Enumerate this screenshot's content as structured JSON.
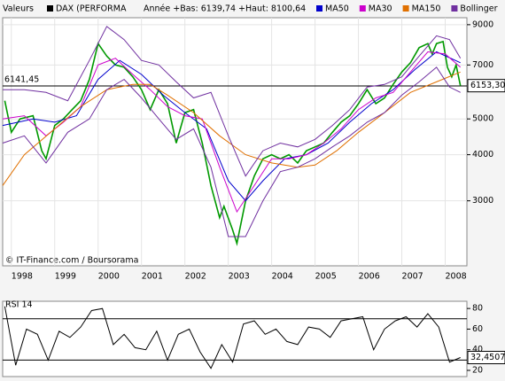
{
  "chart_data": [
    {
      "type": "line",
      "label": "Valeurs",
      "instrument": "DAX (PERFORMA",
      "range_text": "Année +Bas: 6139,74 +Haut: 8100,64",
      "source": "© IT-Finance.com / Boursorama",
      "log_scale": true,
      "grid": true,
      "xlim": [
        1997.8,
        2008.5
      ],
      "xticks": [
        1998,
        1999,
        2000,
        2001,
        2002,
        2003,
        2004,
        2005,
        2006,
        2007,
        2008
      ],
      "ylim": [
        2000,
        9400
      ],
      "yticks": [
        3000,
        4000,
        5000,
        7000,
        9000
      ],
      "reference_line": {
        "value": 6141.45,
        "label": "6141,45"
      },
      "last_value": {
        "value": 6153.3,
        "label": "6153,30"
      },
      "series": [
        {
          "color": "#009900",
          "x": [
            1997.85,
            1998.0,
            1998.2,
            1998.5,
            1998.7,
            1998.8,
            1999.0,
            1999.2,
            1999.4,
            1999.6,
            1999.8,
            2000.0,
            2000.2,
            2000.4,
            2000.6,
            2000.8,
            2001.0,
            2001.2,
            2001.4,
            2001.6,
            2001.8,
            2002.0,
            2002.2,
            2002.4,
            2002.6,
            2002.8,
            2002.9,
            2003.1,
            2003.2,
            2003.4,
            2003.6,
            2003.8,
            2004.0,
            2004.2,
            2004.4,
            2004.6,
            2004.8,
            2005.0,
            2005.2,
            2005.4,
            2005.6,
            2005.8,
            2006.0,
            2006.2,
            2006.4,
            2006.6,
            2006.8,
            2007.0,
            2007.2,
            2007.4,
            2007.6,
            2007.7,
            2007.8,
            2007.95,
            2008.05,
            2008.15,
            2008.25,
            2008.35
          ],
          "values": [
            5600,
            4600,
            5000,
            5100,
            4100,
            3900,
            4800,
            5000,
            5300,
            5600,
            6400,
            8000,
            7400,
            7000,
            6900,
            6500,
            6000,
            5300,
            6000,
            5500,
            4300,
            5200,
            5300,
            4300,
            3300,
            2700,
            2900,
            2500,
            2300,
            3000,
            3500,
            3900,
            4000,
            3900,
            4000,
            3800,
            4100,
            4200,
            4300,
            4600,
            4900,
            5100,
            5500,
            6000,
            5500,
            5700,
            6200,
            6700,
            7100,
            7800,
            8000,
            7500,
            8000,
            8100,
            6900,
            6500,
            7000,
            6150
          ]
        },
        {
          "name": "MA50",
          "color": "#0000cc",
          "x": [
            1997.8,
            1998.5,
            1999.0,
            1999.5,
            2000.0,
            2000.5,
            2001.0,
            2001.5,
            2002.0,
            2002.5,
            2003.0,
            2003.4,
            2003.8,
            2004.3,
            2004.8,
            2005.3,
            2005.8,
            2006.3,
            2006.8,
            2007.3,
            2007.8,
            2008.35
          ],
          "values": [
            4800,
            5000,
            4900,
            5100,
            6400,
            7200,
            6600,
            5800,
            5200,
            4700,
            3400,
            3000,
            3400,
            3900,
            4000,
            4300,
            4900,
            5500,
            6000,
            6800,
            7600,
            7100
          ]
        },
        {
          "name": "MA30",
          "color": "#cc00cc",
          "x": [
            1997.8,
            1998.3,
            1998.8,
            1999.2,
            1999.6,
            2000.0,
            2000.4,
            2000.8,
            2001.2,
            2001.6,
            2002.0,
            2002.4,
            2002.8,
            2003.2,
            2003.6,
            2004.0,
            2004.4,
            2004.8,
            2005.2,
            2005.6,
            2006.0,
            2006.4,
            2006.8,
            2007.2,
            2007.6,
            2008.0,
            2008.35
          ],
          "values": [
            5000,
            5100,
            4500,
            4900,
            5400,
            7000,
            7300,
            6600,
            6000,
            5400,
            5100,
            5000,
            3700,
            2800,
            3300,
            3900,
            3900,
            4000,
            4300,
            4700,
            5300,
            5700,
            5900,
            6700,
            7600,
            7500,
            6900
          ]
        },
        {
          "name": "MA150",
          "color": "#e07000",
          "x": [
            1997.8,
            1998.3,
            1999.0,
            1999.6,
            2000.2,
            2000.8,
            2001.2,
            2001.6,
            2002.2,
            2002.8,
            2003.4,
            2004.0,
            2004.6,
            2005.0,
            2005.5,
            2006.0,
            2006.6,
            2007.2,
            2007.8,
            2008.35
          ],
          "values": [
            3300,
            4000,
            4700,
            5400,
            6000,
            6200,
            6200,
            5800,
            5200,
            4500,
            4000,
            3800,
            3700,
            3750,
            4100,
            4600,
            5200,
            5900,
            6300,
            6700
          ]
        },
        {
          "name": "Bollinger",
          "color": "#7030a0",
          "x": [
            1997.8,
            1998.3,
            1998.8,
            1999.3,
            1999.8,
            2000.2,
            2000.6,
            2001.0,
            2001.4,
            2001.8,
            2002.2,
            2002.6,
            2003.0,
            2003.4,
            2003.8,
            2004.2,
            2004.6,
            2005.0,
            2005.4,
            2005.8,
            2006.2,
            2006.6,
            2007.0,
            2007.4,
            2007.8,
            2008.1,
            2008.35
          ],
          "upper": [
            6000,
            6000,
            5900,
            5600,
            7200,
            8900,
            8200,
            7200,
            7000,
            6300,
            5700,
            5900,
            4500,
            3500,
            4100,
            4300,
            4200,
            4400,
            4800,
            5300,
            6100,
            6200,
            6500,
            7400,
            8400,
            8200,
            7300
          ],
          "lower": [
            4300,
            4500,
            3800,
            4600,
            5000,
            6000,
            6400,
            5700,
            5000,
            4400,
            4700,
            3700,
            2400,
            2400,
            3000,
            3600,
            3700,
            3900,
            4200,
            4500,
            4900,
            5200,
            5800,
            6300,
            6900,
            6100,
            5900
          ]
        }
      ]
    },
    {
      "type": "line",
      "title": "RSI 14",
      "color": "#000000",
      "xlim": [
        1997.8,
        2008.5
      ],
      "ylim": [
        14,
        87
      ],
      "yticks": [
        20,
        40,
        60,
        80
      ],
      "reference_lines": [
        30,
        70
      ],
      "last_value": {
        "value": 32.4507,
        "label": "32,4507"
      },
      "x": [
        1997.85,
        1998.1,
        1998.35,
        1998.6,
        1998.85,
        1999.1,
        1999.35,
        1999.6,
        1999.85,
        2000.1,
        2000.35,
        2000.6,
        2000.85,
        2001.1,
        2001.35,
        2001.6,
        2001.85,
        2002.1,
        2002.35,
        2002.6,
        2002.85,
        2003.1,
        2003.35,
        2003.6,
        2003.85,
        2004.1,
        2004.35,
        2004.6,
        2004.85,
        2005.1,
        2005.35,
        2005.6,
        2005.85,
        2006.1,
        2006.35,
        2006.6,
        2006.85,
        2007.1,
        2007.35,
        2007.6,
        2007.85,
        2008.1,
        2008.35
      ],
      "values": [
        82,
        25,
        60,
        55,
        30,
        58,
        52,
        62,
        78,
        80,
        45,
        55,
        42,
        40,
        58,
        30,
        55,
        60,
        38,
        22,
        45,
        28,
        65,
        68,
        55,
        60,
        48,
        45,
        62,
        60,
        52,
        68,
        70,
        72,
        40,
        60,
        68,
        72,
        62,
        75,
        62,
        28,
        32.4507
      ]
    }
  ]
}
